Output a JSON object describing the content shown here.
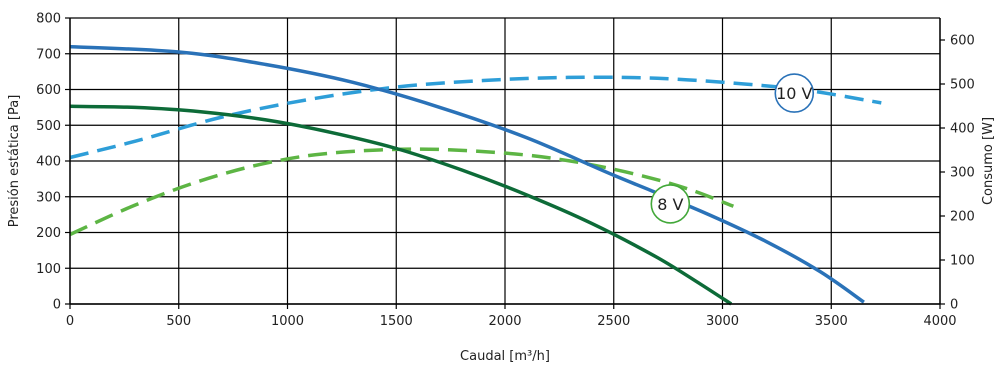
{
  "chart_data": {
    "type": "line",
    "xlabel": "Caudal [m³/h]",
    "ylabel_left": "Presión estática [Pa]",
    "ylabel_right": "Consumo [W]",
    "xlim": [
      0,
      4000
    ],
    "ylim_left": [
      0,
      800
    ],
    "ylim_right": [
      0,
      650
    ],
    "x_ticks": [
      0,
      500,
      1000,
      1500,
      2000,
      2500,
      3000,
      3500,
      4000
    ],
    "y_ticks_left": [
      0,
      100,
      200,
      300,
      400,
      500,
      600,
      700,
      800
    ],
    "y_ticks_right": [
      0,
      100,
      200,
      300,
      400,
      500,
      600
    ],
    "grid": true,
    "series": [
      {
        "label": "10 V",
        "kind": "pressure",
        "axis": "left",
        "style": "solid",
        "color": "#2a72b8",
        "points": [
          [
            0,
            720
          ],
          [
            500,
            705
          ],
          [
            900,
            670
          ],
          [
            1300,
            620
          ],
          [
            1700,
            550
          ],
          [
            2100,
            465
          ],
          [
            2500,
            360
          ],
          [
            2900,
            260
          ],
          [
            3200,
            175
          ],
          [
            3450,
            90
          ],
          [
            3650,
            5
          ]
        ]
      },
      {
        "label": "8 V",
        "kind": "pressure",
        "axis": "left",
        "style": "solid",
        "color": "#0d6b38",
        "points": [
          [
            0,
            553
          ],
          [
            300,
            550
          ],
          [
            600,
            538
          ],
          [
            900,
            515
          ],
          [
            1200,
            480
          ],
          [
            1500,
            435
          ],
          [
            1800,
            375
          ],
          [
            2100,
            305
          ],
          [
            2400,
            225
          ],
          [
            2700,
            130
          ],
          [
            2900,
            55
          ],
          [
            3040,
            0
          ]
        ]
      },
      {
        "label": "10 V",
        "kind": "consumption",
        "axis": "right",
        "style": "dashed",
        "color": "#2e9ed8",
        "points": [
          [
            0,
            333
          ],
          [
            300,
            370
          ],
          [
            700,
            425
          ],
          [
            1100,
            465
          ],
          [
            1500,
            493
          ],
          [
            1900,
            508
          ],
          [
            2300,
            515
          ],
          [
            2700,
            513
          ],
          [
            3100,
            500
          ],
          [
            3400,
            485
          ],
          [
            3730,
            457
          ]
        ]
      },
      {
        "label": "8 V",
        "kind": "consumption",
        "axis": "right",
        "style": "dashed",
        "color": "#5db544",
        "points": [
          [
            0,
            158
          ],
          [
            300,
            225
          ],
          [
            600,
            280
          ],
          [
            900,
            320
          ],
          [
            1200,
            343
          ],
          [
            1600,
            352
          ],
          [
            2000,
            343
          ],
          [
            2300,
            325
          ],
          [
            2600,
            295
          ],
          [
            2850,
            260
          ],
          [
            3050,
            222
          ]
        ]
      }
    ],
    "annotations": [
      {
        "text": "10 V",
        "x": 3330,
        "y_left": 590,
        "color": "#2a72b8"
      },
      {
        "text": "8 V",
        "x": 2760,
        "y_left": 280,
        "color": "#43a83a"
      }
    ]
  }
}
